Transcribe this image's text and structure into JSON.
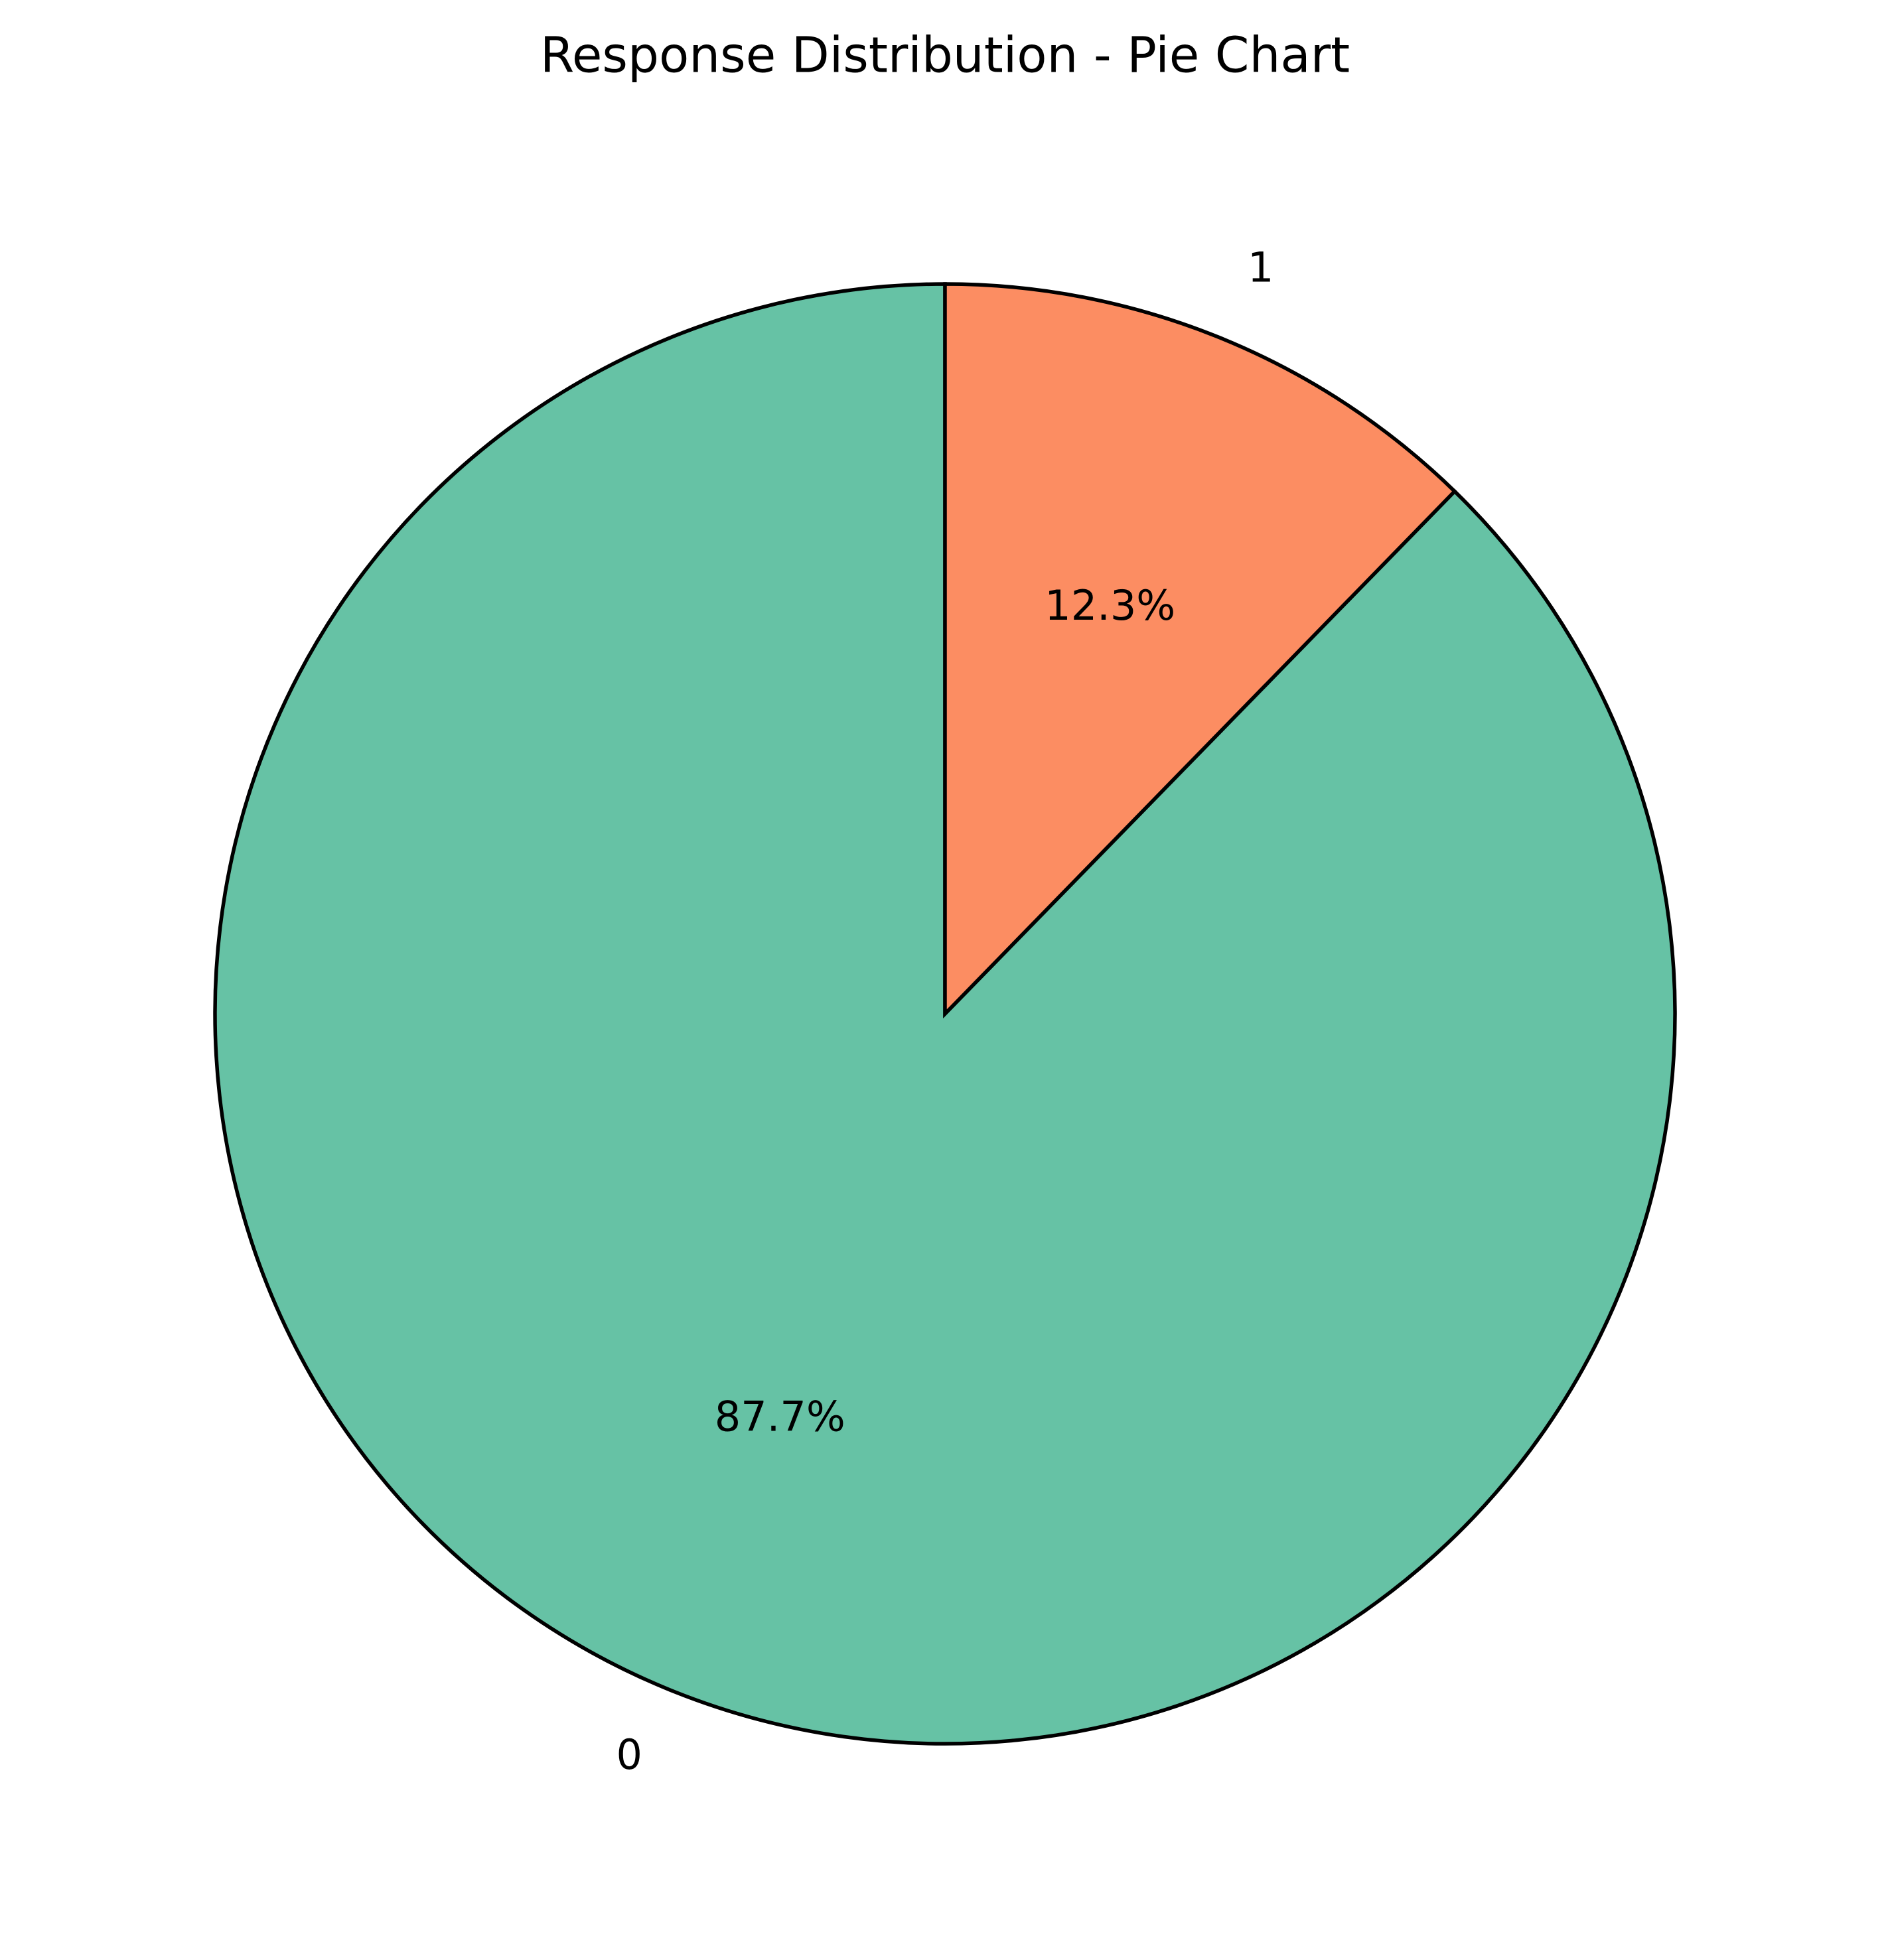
{
  "chart_data": {
    "type": "pie",
    "title": "Response Distribution - Pie Chart",
    "labels": [
      "0",
      "1"
    ],
    "values": [
      87.7,
      12.3
    ],
    "percent_labels": [
      "87.7%",
      "12.3%"
    ],
    "colors": [
      "#66c2a5",
      "#fc8d62"
    ],
    "edge_color": "#000000",
    "start_angle_deg": 90,
    "direction": "counterclockwise",
    "legend": "none"
  }
}
